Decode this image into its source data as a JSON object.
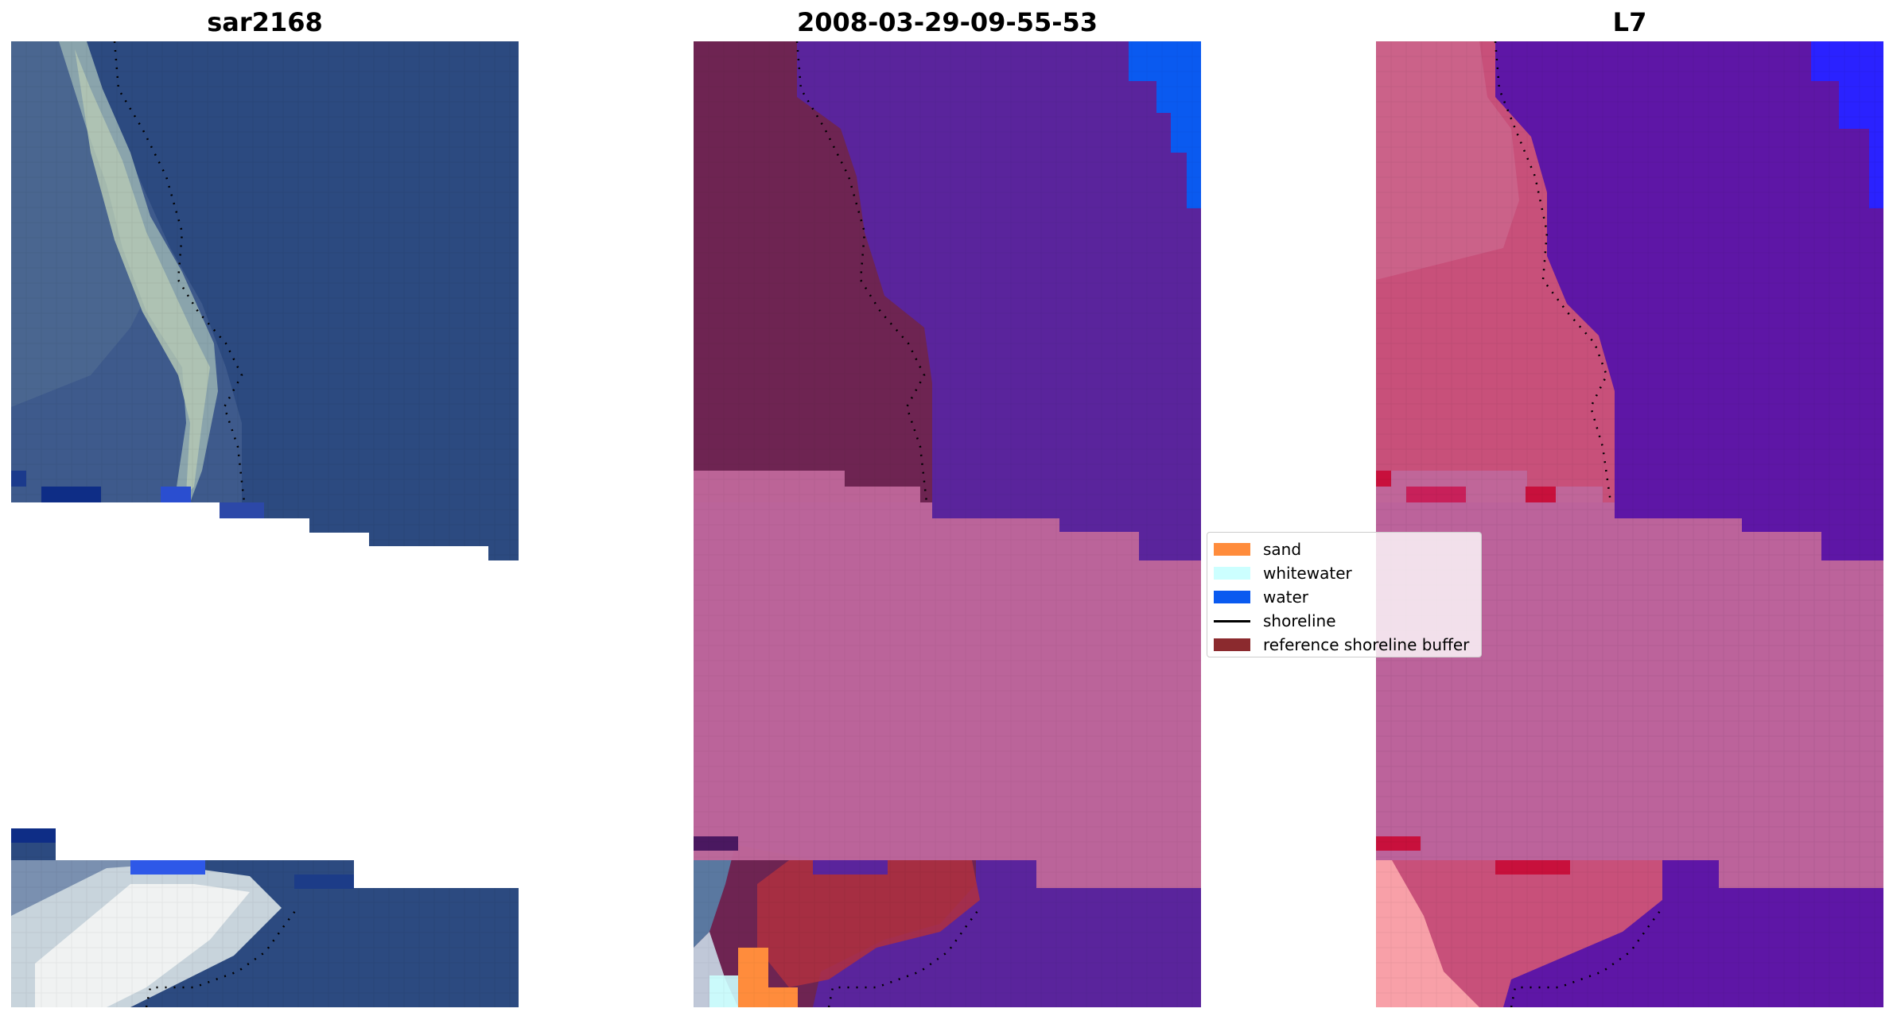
{
  "panels": [
    {
      "title": "sar2168"
    },
    {
      "title": "2008-03-29-09-55-53"
    },
    {
      "title": "L7"
    }
  ],
  "legend": {
    "items": [
      {
        "label": "sand",
        "color": "#ff8c3c",
        "type": "patch"
      },
      {
        "label": "whitewater",
        "color": "#ccffff",
        "type": "patch"
      },
      {
        "label": "water",
        "color": "#0a5af0",
        "type": "patch"
      },
      {
        "label": "shoreline",
        "color": "#000000",
        "type": "line"
      },
      {
        "label": "reference shoreline buffer",
        "color": "#8b2a2e",
        "type": "patch"
      }
    ]
  },
  "colors": {
    "rgb_water": "#2c4a80",
    "classified_water": "#5a249c",
    "classified_land": "#6e2452",
    "buffer_overlay": "#c0679a",
    "mndwi_land": "#c8507a",
    "mndwi_water": "#5e16a6",
    "no_data": "#ffffff"
  }
}
